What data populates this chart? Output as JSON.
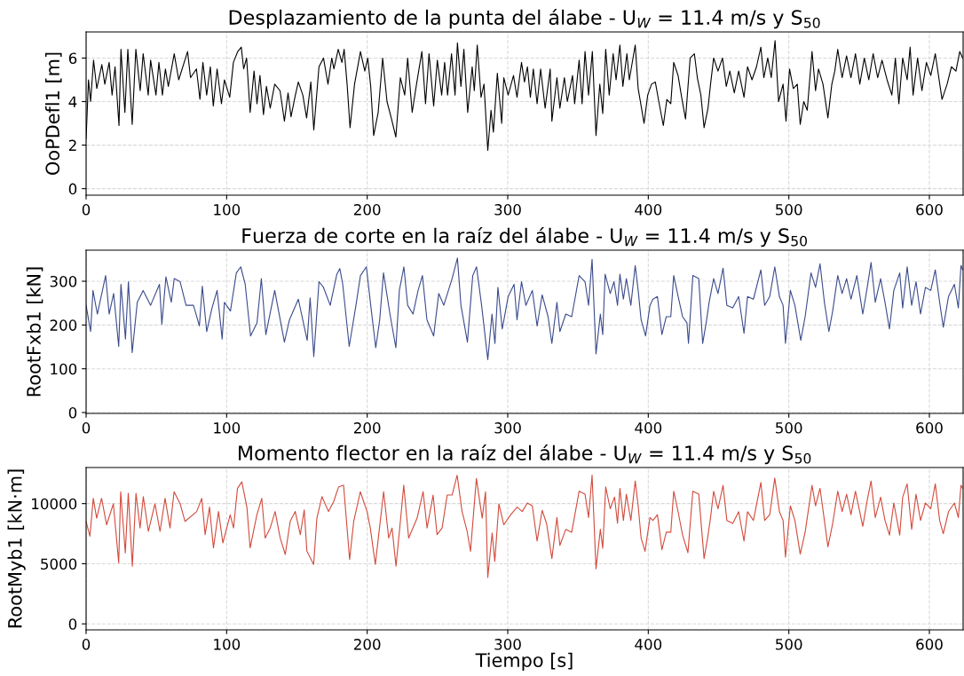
{
  "chart_data": [
    {
      "type": "line",
      "title": "Desplazamiento de la punta del álabe - U$_{W}$ = 11.4 m/s y S$_{50}$",
      "ylabel": "OoPDefl1 [m]",
      "xlim": [
        0,
        624
      ],
      "ylim": [
        -0.3,
        7.2
      ],
      "xticks": [
        0,
        100,
        200,
        300,
        400,
        500,
        600
      ],
      "yticks": [
        0,
        2,
        4,
        6
      ],
      "grid": true,
      "x": [
        0,
        1.7,
        3.2,
        5.3,
        7.6,
        11.2,
        13.3,
        16.4,
        18.5,
        20.6,
        23.4,
        24.8,
        27.6,
        29.7,
        32.8,
        35.4,
        38.5,
        40.6,
        44.2,
        45.9,
        49.7,
        51.8,
        54.3,
        56.4,
        58.5,
        62.7,
        65.9,
        72.2,
        74.3,
        78.5,
        81.0,
        83.1,
        85.8,
        88.4,
        90.5,
        93.2,
        96.3,
        98.4,
        102.2,
        104.8,
        107.9,
        110.4,
        112.1,
        114.2,
        116.7,
        119.5,
        121.6,
        123.7,
        126.2,
        128.3,
        131.0,
        134.2,
        138.0,
        141.1,
        143.7,
        145.8,
        148.9,
        151.0,
        154.2,
        156.9,
        159.9,
        162.0,
        165.7,
        168.9,
        172.1,
        174.8,
        176.3,
        179.4,
        182.0,
        183.6,
        185.7,
        187.8,
        191.0,
        195.2,
        198.3,
        200.4,
        202.5,
        204.6,
        207.8,
        211.0,
        214.1,
        217.3,
        220.4,
        223.6,
        226.7,
        228.8,
        232.0,
        235.1,
        238.9,
        241.5,
        244.0,
        247.3,
        249.9,
        253.0,
        255.1,
        257.2,
        260.0,
        262.5,
        264.2,
        266.7,
        268.8,
        271.5,
        274.7,
        276.2,
        278.3,
        281.0,
        283.1,
        285.8,
        288.1,
        289.8,
        292.6,
        295.7,
        297.2,
        300.3,
        304.1,
        306.6,
        309.8,
        311.9,
        314.0,
        316.1,
        318.2,
        320.9,
        323.4,
        326.6,
        330.2,
        331.4,
        335.0,
        337.1,
        340.3,
        342.4,
        346.1,
        347.6,
        350.8,
        352.9,
        355.0,
        357.5,
        360.2,
        362.8,
        365.5,
        367.6,
        369.7,
        372.2,
        375.0,
        377.1,
        379.8,
        381.9,
        384.8,
        386.5,
        390.7,
        392.8,
        394.9,
        397.0,
        399.6,
        402.3,
        405.0,
        407.5,
        410.7,
        413.2,
        416.0,
        418.1,
        421.2,
        424.0,
        426.5,
        429.8,
        432.8,
        434.9,
        437.4,
        439.7,
        442.5,
        444.3,
        446.5,
        449.6,
        452.8,
        455.5,
        458.0,
        461.2,
        464.3,
        468.1,
        470.6,
        473.8,
        477.0,
        480.1,
        482.2,
        485.0,
        487.5,
        490.2,
        492.7,
        495.9,
        498.0,
        500.5,
        503.2,
        506.0,
        508.1,
        510.6,
        513.1,
        516.5,
        519.0,
        521.1,
        524.3,
        527.8,
        530.6,
        532.7,
        534.8,
        537.9,
        541.1,
        544.2,
        547.4,
        550.5,
        553.7,
        556.9,
        560.0,
        563.2,
        566.3,
        569.9,
        573.3,
        575.8,
        578.3,
        581.0,
        584.2,
        586.3,
        588.4,
        591.6,
        594.7,
        597.9,
        601.0,
        604.2,
        609.0,
        612.6,
        615.7,
        618.9,
        621.6,
        623.7
      ],
      "series": [
        {
          "color": "#000000",
          "values": [
            2.3,
            5.0,
            4.0,
            5.9,
            4.6,
            5.7,
            4.8,
            5.8,
            4.3,
            5.6,
            2.9,
            6.4,
            3.5,
            6.4,
            2.95,
            6.4,
            4.5,
            6.2,
            4.3,
            5.9,
            4.3,
            5.8,
            4.3,
            5.5,
            4.7,
            6.2,
            5.0,
            6.3,
            5.1,
            5.5,
            4.1,
            5.8,
            4.3,
            5.6,
            3.8,
            5.5,
            3.9,
            5.0,
            4.2,
            5.8,
            6.3,
            6.5,
            5.5,
            6.0,
            3.5,
            5.4,
            3.9,
            5.2,
            3.4,
            4.7,
            3.7,
            4.8,
            4.5,
            3.1,
            4.4,
            3.3,
            4.3,
            4.9,
            4.3,
            3.25,
            4.9,
            2.7,
            5.6,
            6.0,
            4.8,
            6.0,
            5.5,
            6.4,
            5.8,
            6.4,
            4.8,
            2.8,
            4.8,
            6.3,
            5.4,
            6.0,
            4.7,
            2.44,
            3.5,
            6.0,
            4.0,
            3.2,
            2.37,
            5.1,
            4.3,
            6.0,
            3.5,
            4.8,
            6.3,
            3.9,
            6.2,
            3.8,
            5.9,
            4.3,
            5.8,
            4.3,
            6.2,
            4.3,
            6.7,
            4.7,
            6.4,
            3.5,
            5.6,
            4.5,
            6.6,
            4.2,
            4.8,
            1.76,
            3.6,
            2.6,
            5.3,
            3.0,
            5.1,
            4.3,
            5.2,
            4.2,
            5.8,
            4.9,
            5.6,
            4.2,
            5.5,
            3.9,
            5.5,
            3.7,
            5.5,
            3.1,
            5.1,
            3.7,
            5.1,
            4.0,
            5.2,
            3.9,
            5.9,
            3.9,
            6.3,
            4.3,
            6.3,
            2.44,
            4.8,
            3.45,
            6.4,
            4.3,
            6.2,
            5.0,
            6.6,
            4.7,
            6.2,
            5.0,
            6.6,
            4.6,
            3.8,
            3.0,
            4.3,
            4.8,
            4.9,
            4.0,
            2.9,
            4.1,
            3.9,
            5.8,
            5.2,
            4.1,
            3.2,
            6.0,
            6.2,
            5.1,
            4.3,
            2.8,
            3.7,
            4.8,
            6.0,
            5.4,
            6.0,
            4.7,
            5.4,
            4.4,
            5.4,
            4.2,
            5.6,
            5.0,
            5.6,
            6.5,
            5.1,
            6.0,
            5.1,
            6.8,
            4.0,
            4.8,
            3.1,
            5.5,
            4.6,
            4.8,
            2.95,
            4.0,
            3.6,
            6.3,
            4.5,
            5.5,
            4.8,
            3.25,
            4.8,
            5.4,
            6.4,
            5.1,
            6.1,
            5.1,
            6.2,
            4.8,
            6.0,
            5.0,
            6.2,
            5.1,
            5.9,
            5.0,
            4.3,
            6.0,
            3.9,
            6.0,
            5.0,
            6.5,
            4.3,
            6.0,
            4.5,
            5.8,
            5.2,
            6.2,
            4.1,
            4.8,
            5.6,
            5.4,
            6.3,
            6.0
          ]
        }
      ]
    },
    {
      "type": "line",
      "title": "Fuerza de corte en la raíz del álabe - U$_{W}$ = 11.4 m/s y S$_{50}$",
      "ylabel": "RootFxb1 [kN]",
      "xlim": [
        0,
        624
      ],
      "ylim": [
        -2,
        371
      ],
      "xticks": [
        0,
        100,
        200,
        300,
        400,
        500,
        600
      ],
      "yticks": [
        0,
        100,
        200,
        300
      ],
      "grid": true,
      "x": [
        0,
        3.2,
        4.9,
        8.0,
        13.9,
        16.4,
        19.6,
        23.2,
        24.8,
        28.0,
        30.1,
        32.8,
        36.4,
        40.6,
        45.9,
        52.2,
        53.9,
        56.8,
        60.6,
        62.7,
        66.9,
        71.1,
        76.4,
        80.6,
        82.7,
        85.8,
        89.6,
        93.2,
        96.8,
        98.4,
        102.7,
        106.9,
        110.0,
        113.2,
        117.0,
        121.6,
        124.7,
        127.9,
        134.2,
        141.1,
        144.7,
        151.0,
        157.3,
        159.4,
        162.0,
        165.7,
        168.9,
        173.7,
        178.4,
        180.5,
        182.6,
        187.2,
        192.0,
        195.2,
        199.4,
        202.5,
        206.1,
        208.9,
        211.6,
        216.2,
        220.4,
        222.9,
        226.1,
        228.8,
        232.6,
        236.2,
        239.3,
        242.5,
        247.3,
        250.9,
        254.5,
        260.4,
        264.2,
        266.7,
        271.3,
        275.1,
        277.8,
        281.4,
        285.8,
        288.8,
        290.9,
        293.0,
        296.1,
        300.3,
        304.5,
        306.6,
        309.8,
        312.9,
        317.5,
        320.9,
        324.5,
        328.7,
        331.4,
        335.0,
        337.1,
        341.3,
        345.5,
        350.8,
        355.0,
        357.5,
        360.0,
        362.8,
        365.9,
        367.6,
        369.3,
        372.9,
        375.6,
        378.1,
        379.8,
        382.3,
        384.4,
        387.6,
        390.7,
        392.8,
        394.9,
        398.1,
        401.2,
        403.3,
        406.5,
        409.7,
        412.8,
        416.0,
        418.1,
        421.2,
        424.4,
        427.5,
        428.6,
        431.7,
        435.9,
        438.7,
        441.2,
        443.3,
        446.5,
        449.6,
        453.2,
        455.9,
        460.1,
        464.3,
        468.1,
        470.6,
        474.8,
        480.1,
        482.8,
        486.4,
        490.0,
        493.3,
        495.9,
        497.6,
        501.1,
        504.3,
        508.5,
        511.6,
        515.8,
        519.0,
        522.2,
        525.3,
        528.5,
        531.2,
        534.8,
        537.9,
        541.1,
        544.2,
        548.4,
        552.6,
        555.8,
        558.5,
        561.5,
        565.3,
        568.4,
        571.6,
        574.7,
        578.9,
        581.0,
        584.2,
        587.4,
        590.5,
        593.7,
        597.2,
        601.0,
        604.2,
        607.3,
        609.9,
        613.6,
        617.8,
        620.6,
        622.5,
        623.7
      ],
      "series": [
        {
          "color": "#3b4b8c",
          "values": [
            245,
            185,
            279,
            225,
            313,
            225,
            272,
            151,
            293,
            168,
            299,
            137,
            252,
            279,
            245,
            293,
            202,
            310,
            252,
            306,
            299,
            245,
            245,
            198,
            289,
            185,
            239,
            279,
            168,
            252,
            232,
            319,
            333,
            293,
            175,
            205,
            306,
            178,
            279,
            161,
            212,
            259,
            165,
            262,
            128,
            299,
            286,
            245,
            316,
            329,
            293,
            151,
            245,
            313,
            333,
            245,
            148,
            212,
            319,
            225,
            148,
            279,
            333,
            245,
            225,
            279,
            313,
            212,
            175,
            272,
            245,
            306,
            353,
            245,
            161,
            313,
            333,
            245,
            121,
            225,
            158,
            286,
            191,
            265,
            293,
            212,
            299,
            245,
            279,
            198,
            269,
            219,
            158,
            252,
            185,
            225,
            219,
            313,
            299,
            245,
            350,
            134,
            225,
            178,
            316,
            272,
            299,
            245,
            316,
            259,
            306,
            245,
            336,
            279,
            212,
            175,
            245,
            259,
            265,
            178,
            219,
            219,
            313,
            266,
            219,
            205,
            158,
            313,
            306,
            158,
            205,
            252,
            306,
            272,
            330,
            245,
            239,
            265,
            181,
            265,
            259,
            326,
            245,
            265,
            333,
            265,
            245,
            158,
            279,
            245,
            165,
            219,
            319,
            286,
            340,
            252,
            185,
            232,
            313,
            272,
            306,
            259,
            313,
            225,
            286,
            343,
            252,
            306,
            252,
            191,
            279,
            319,
            239,
            333,
            245,
            299,
            225,
            286,
            279,
            326,
            252,
            195,
            265,
            293,
            239,
            336,
            326
          ]
        }
      ]
    },
    {
      "type": "line",
      "title": "Momento flector en la raíz del álabe - U$_{W}$ = 11.4 m/s y S$_{50}$",
      "ylabel": "RootMyb1 [kN·m]",
      "xlabel": "Tiempo [s]",
      "xlim": [
        0,
        624
      ],
      "ylim": [
        -500,
        13000
      ],
      "xticks": [
        0,
        100,
        200,
        300,
        400,
        500,
        600
      ],
      "yticks": [
        0,
        5000,
        10000
      ],
      "grid": true,
      "x": [
        0,
        2.7,
        5.1,
        7.5,
        11.0,
        14.6,
        19.4,
        23.2,
        24.6,
        27.9,
        30.0,
        32.9,
        35.5,
        38.4,
        40.7,
        44.3,
        49.0,
        52.6,
        56.2,
        59.7,
        62.6,
        66.9,
        70.4,
        78.7,
        82.3,
        84.7,
        87.8,
        90.6,
        94.2,
        97.3,
        102.5,
        104.9,
        107.7,
        110.8,
        114.4,
        116.7,
        121.5,
        125.0,
        127.4,
        131.0,
        134.5,
        138.1,
        141.7,
        145.2,
        148.8,
        152.4,
        155.2,
        157.1,
        161.9,
        164.2,
        167.8,
        172.5,
        176.1,
        179.7,
        183.2,
        187.5,
        190.4,
        195.1,
        199.9,
        202.2,
        205.8,
        208.2,
        211.7,
        215.3,
        217.7,
        220.5,
        223.6,
        226.0,
        229.5,
        235.5,
        239.8,
        242.6,
        246.9,
        249.7,
        253.3,
        256.9,
        260.4,
        264.0,
        267.5,
        271.1,
        273.5,
        277.7,
        281.8,
        284.2,
        285.8,
        288.9,
        290.8,
        293.7,
        297.2,
        302.0,
        306.7,
        310.3,
        314.0,
        317.5,
        320.9,
        324.5,
        327.6,
        331.4,
        335.0,
        337.1,
        341.3,
        345.5,
        350.8,
        355.0,
        357.5,
        360.0,
        362.8,
        365.9,
        367.6,
        369.7,
        372.9,
        376.0,
        378.1,
        379.8,
        382.3,
        384.4,
        387.6,
        390.7,
        392.8,
        394.9,
        397.7,
        401.2,
        403.3,
        406.5,
        409.7,
        412.8,
        416.0,
        418.1,
        421.2,
        424.4,
        428.2,
        431.7,
        435.9,
        439.7,
        442.2,
        444.3,
        446.5,
        449.6,
        453.2,
        455.9,
        460.1,
        464.3,
        468.1,
        470.6,
        474.8,
        480.1,
        482.8,
        486.4,
        490.0,
        493.3,
        495.9,
        497.6,
        501.1,
        504.3,
        508.1,
        511.6,
        516.5,
        519.0,
        522.2,
        525.3,
        527.8,
        531.2,
        534.8,
        537.9,
        541.1,
        544.2,
        547.4,
        552.6,
        555.8,
        558.5,
        561.5,
        565.3,
        568.4,
        571.6,
        574.7,
        578.9,
        581.0,
        584.2,
        587.4,
        590.5,
        593.7,
        597.2,
        601.0,
        604.2,
        607.3,
        609.9,
        613.6,
        617.8,
        620.6,
        622.5,
        623.7
      ],
      "series": [
        {
          "color": "#d24b3c",
          "values": [
            8516,
            7285,
            10440,
            8790,
            10440,
            8240,
            9980,
            5080,
            10990,
            5900,
            10850,
            4800,
            10850,
            7970,
            10580,
            7690,
            9980,
            7690,
            10440,
            7970,
            10990,
            9980,
            8516,
            9340,
            10440,
            7420,
            9710,
            6320,
            9340,
            6730,
            9060,
            7970,
            11260,
            11810,
            9710,
            6320,
            9060,
            10440,
            7140,
            7970,
            9340,
            7140,
            5770,
            8516,
            9340,
            7420,
            9480,
            6040,
            4940,
            8790,
            10580,
            9340,
            10160,
            11400,
            11530,
            5350,
            8516,
            10990,
            9340,
            7970,
            4940,
            7420,
            10990,
            7140,
            7970,
            4800,
            8516,
            11530,
            7140,
            8790,
            10990,
            7970,
            10710,
            7420,
            7970,
            10710,
            10710,
            12360,
            9340,
            7690,
            6040,
            12090,
            8790,
            10990,
            3850,
            7550,
            5210,
            9980,
            8240,
            9060,
            9710,
            9340,
            10050,
            9810,
            6890,
            9440,
            8350,
            5430,
            8840,
            6530,
            7860,
            7620,
            11030,
            10780,
            8840,
            12360,
            4580,
            7860,
            6280,
            11390,
            9570,
            10540,
            8350,
            11270,
            8600,
            10780,
            8600,
            11880,
            9810,
            7130,
            6040,
            8840,
            8600,
            9080,
            6160,
            7620,
            7620,
            11030,
            9330,
            7380,
            5920,
            11030,
            10780,
            5430,
            7130,
            8840,
            11030,
            9570,
            11520,
            8600,
            8350,
            9330,
            6890,
            9330,
            8600,
            11760,
            8600,
            9080,
            12120,
            9330,
            8600,
            5550,
            9810,
            8600,
            5800,
            7620,
            11520,
            9810,
            11270,
            8600,
            6410,
            8350,
            11030,
            9330,
            10780,
            9080,
            11030,
            8110,
            10300,
            11880,
            8840,
            10540,
            8600,
            7380,
            10050,
            7380,
            10540,
            11640,
            7860,
            10780,
            8600,
            10050,
            9570,
            11640,
            8600,
            7500,
            9330,
            10050,
            8840,
            11520,
            11270
          ]
        }
      ]
    }
  ]
}
